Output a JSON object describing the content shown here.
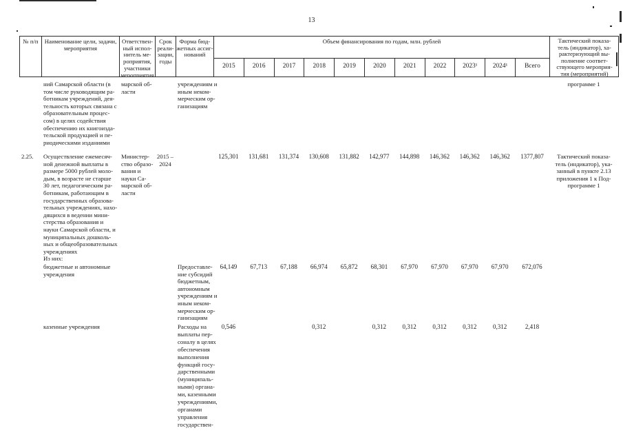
{
  "page": {
    "number": "13"
  },
  "header": {
    "col_num": "№ п/п",
    "col_name": "Наименование цели, задачи,\nмероприятия",
    "col_executor": "Ответствен-\nный испол-\nнитель ме-\nроприятия,\nучастники\nмероприятия",
    "col_period": "Срок\nреали-\nзации,\nгоды",
    "col_form": "Форма бюд-\nжетных ассиг-\nнований",
    "col_funding": "Объем финансирования по годам, млн. рублей",
    "years": [
      "2015",
      "2016",
      "2017",
      "2018",
      "2019",
      "2020",
      "2021",
      "2022",
      "2023¹",
      "2024¹",
      "Всего"
    ],
    "col_indicator": "Тактический показа-\nтель (индикатор), ха-\nрактеризующий вы-\nполнение соответ-\nствующего мероприя-\nтия (мероприятий)"
  },
  "rows": [
    {
      "name": "ний Самарской области (в\nтом числе руководящим ра-\nботникам учреждений, дея-\nтельность которых связана с\nобразовательным процес-\nсом) в целях содействия\nобеспечению их книгоизда-\nтельской продукцией и пе-\nриодическими изданиями",
      "executor": "марской об-\nласти",
      "form": "учреждениям и\nиным неком-\nмерческим ор-\nганизациям",
      "indicator": "программе 1"
    },
    {
      "num": "2.25.",
      "name": "Осуществление ежемесяч-\nной денежной выплаты в\nразмере 5000 рублей моло-\nдым, в возрасте не старше\n30 лет, педагогическим ра-\nботникам, работающим в\nгосударственных образова-\nтельных учреждениях, нахо-\nдящихся в ведении мини-\nстерства образования и\nнауки Самарской области, и\nмуниципальных дошколь-\nных и общеобразовательных\nучреждениях",
      "sub_label": "Из них:",
      "executor": "Министер-\nство образо-\nвания и\nнауки Са-\nмарской об-\nласти",
      "period": "2015 –\n2024",
      "values": [
        "125,301",
        "131,681",
        "131,374",
        "130,608",
        "131,882",
        "142,977",
        "144,898",
        "146,362",
        "146,362",
        "146,362"
      ],
      "total": "1377,807",
      "indicator": "Тактический показа-\nтель (индикатор), ука-\nзанный в пункте 2.13\nприложения 1 к Под-\nпрограмме 1"
    },
    {
      "name": "бюджетные и автономные\nучреждения",
      "form": "Предоставле-\nние субсидий\nбюджетным,\nавтономным\nучреждениям и\nиным неком-\nмерческим ор-\nганизациям",
      "values": [
        "64,149",
        "67,713",
        "67,188",
        "66,974",
        "65,872",
        "68,301",
        "67,970",
        "67,970",
        "67,970",
        "67,970"
      ],
      "total": "672,076"
    },
    {
      "name": "казенные учреждения",
      "form": "Расходы на\nвыплаты пер-\nсоналу в целях\nобеспечения\nвыполнения\nфункций госу-\nдарственными\n(муниципаль-\nными) органа-\nми, казенными\nучреждениями,\nорганами\nуправления\nгосударствен-",
      "values": [
        "0,546",
        "",
        "",
        "0,312",
        "",
        "0,312",
        "0,312",
        "0,312",
        "0,312",
        "0,312"
      ],
      "total": "2,418"
    }
  ]
}
